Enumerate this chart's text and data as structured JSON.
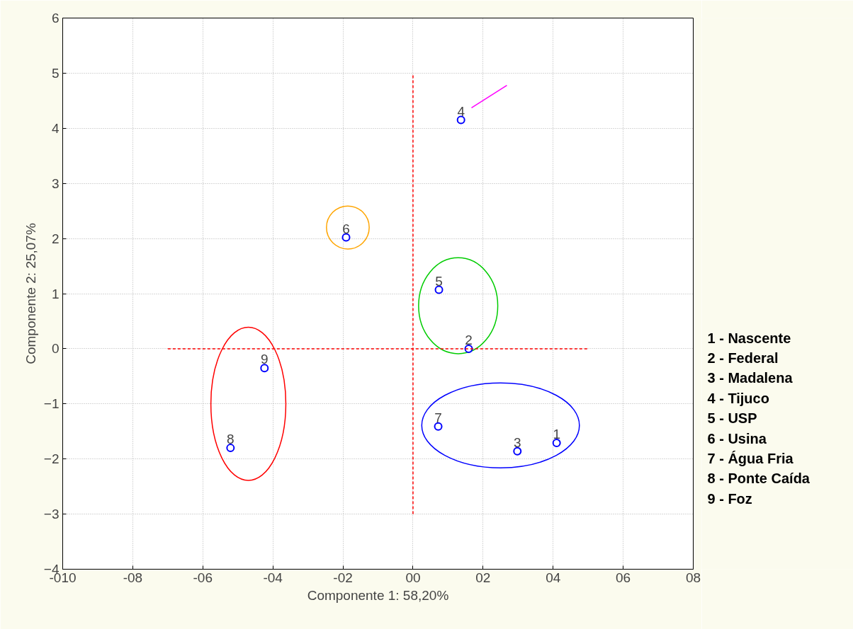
{
  "chart_data": {
    "type": "scatter",
    "xlabel": "Componente 1: 58,20%",
    "ylabel": "Componente 2: 25,07%",
    "xlim": [
      -10,
      8
    ],
    "ylim": [
      -4,
      6
    ],
    "xticks": [
      {
        "value": -10,
        "label": "-010"
      },
      {
        "value": -8,
        "label": "-08"
      },
      {
        "value": -6,
        "label": "-06"
      },
      {
        "value": -4,
        "label": "-04"
      },
      {
        "value": -2,
        "label": "-02"
      },
      {
        "value": 0,
        "label": "00"
      },
      {
        "value": 2,
        "label": "02"
      },
      {
        "value": 4,
        "label": "04"
      },
      {
        "value": 6,
        "label": "06"
      },
      {
        "value": 8,
        "label": "08"
      }
    ],
    "yticks": [
      -4,
      -3,
      -2,
      -1,
      0,
      1,
      2,
      3,
      4,
      5,
      6
    ],
    "grid": true,
    "series": [
      {
        "marker": "circle",
        "color": "#0000ff",
        "x": [
          4.1,
          1.59,
          2.98,
          1.37,
          0.74,
          -1.91,
          0.72,
          -5.21,
          -4.24
        ],
        "values": [
          -1.71,
          0.0,
          -1.86,
          4.15,
          1.07,
          2.02,
          -1.41,
          -1.8,
          -0.35
        ]
      },
      {
        "type": "line",
        "color": "#ff0000",
        "line_style": "dashed",
        "x": [
          -7,
          5
        ],
        "values": [
          0,
          0
        ]
      },
      {
        "type": "line",
        "color": "#ff0000",
        "line_style": "dashed",
        "x": [
          0,
          0
        ],
        "values": [
          -3,
          5
        ]
      },
      {
        "type": "line",
        "color": "#ff00ff",
        "line_style": "solid",
        "x": [
          2.68,
          1.67
        ],
        "values": [
          4.78,
          4.37
        ]
      }
    ],
    "annotations": [
      {
        "text": "1",
        "x": 4.1,
        "y": -1.71
      },
      {
        "text": "2",
        "x": 1.59,
        "y": 0.0
      },
      {
        "text": "3",
        "x": 2.98,
        "y": -1.86
      },
      {
        "text": "4",
        "x": 1.37,
        "y": 4.15
      },
      {
        "text": "5",
        "x": 0.74,
        "y": 1.07
      },
      {
        "text": "6",
        "x": -1.91,
        "y": 2.02
      },
      {
        "text": "7",
        "x": 0.72,
        "y": -1.41
      },
      {
        "text": "8",
        "x": -5.21,
        "y": -1.8
      },
      {
        "text": "9",
        "x": -4.24,
        "y": -0.35
      },
      "1 - Nascente",
      "2 - Federal",
      "3 - Madalena",
      "4 - Tijuco",
      "5 - USP",
      "6 - Usina",
      "7 - Água Fria",
      "8 - Ponte Caída",
      "9 - Foz"
    ]
  }
}
